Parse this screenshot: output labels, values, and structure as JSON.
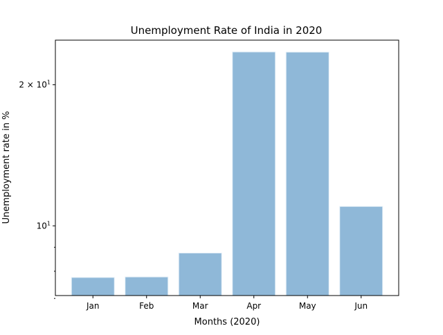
{
  "chart_data": {
    "type": "bar",
    "title": "Unemployment Rate of India in 2020",
    "xlabel": "Months (2020)",
    "ylabel": "Unemployment rate in %",
    "categories": [
      "Jan",
      "Feb",
      "Mar",
      "Apr",
      "May",
      "Jun"
    ],
    "values": [
      7.76,
      7.78,
      8.75,
      23.5,
      23.48,
      11.0
    ],
    "yscale": "log",
    "ylim": [
      7.1,
      24.9
    ],
    "major_ticks": [
      {
        "value": 10,
        "label_base": "10",
        "label_exp": "1",
        "label_mult": ""
      },
      {
        "value": 20,
        "label_base": "10",
        "label_exp": "1",
        "label_mult": "2 × "
      }
    ],
    "minor_ticks": [
      7,
      8,
      9
    ],
    "grid": false,
    "legend": "none",
    "bar_color": "#8fb8d8",
    "bar_edge_color": "#e6f0f8"
  }
}
